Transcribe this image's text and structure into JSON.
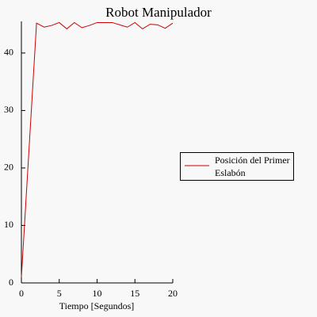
{
  "chart_data": {
    "type": "line",
    "title": "Robot Manipulador",
    "x_label": "Tiempo [Segundos]",
    "x": [
      0,
      2,
      3,
      4,
      5,
      6,
      7,
      8,
      9,
      10,
      11,
      12,
      13,
      14,
      15,
      16,
      17,
      18,
      19,
      20
    ],
    "series": [
      {
        "name": "Posición del Primer Eslabón",
        "color": "#cc0000",
        "values": [
          1,
          45.2,
          44.5,
          44.8,
          45.3,
          44.2,
          45.3,
          44.4,
          44.8,
          45.3,
          45.3,
          45.3,
          44.9,
          44.5,
          45.3,
          44.2,
          45.0,
          44.9,
          44.3,
          45.2
        ]
      }
    ],
    "xlim": [
      0,
      20
    ],
    "ylim": [
      0,
      45.5
    ],
    "xticks": [
      0,
      5,
      10,
      15,
      20
    ],
    "yticks": [
      0,
      10,
      20,
      30,
      40
    ],
    "grid": false,
    "legend": "right"
  }
}
